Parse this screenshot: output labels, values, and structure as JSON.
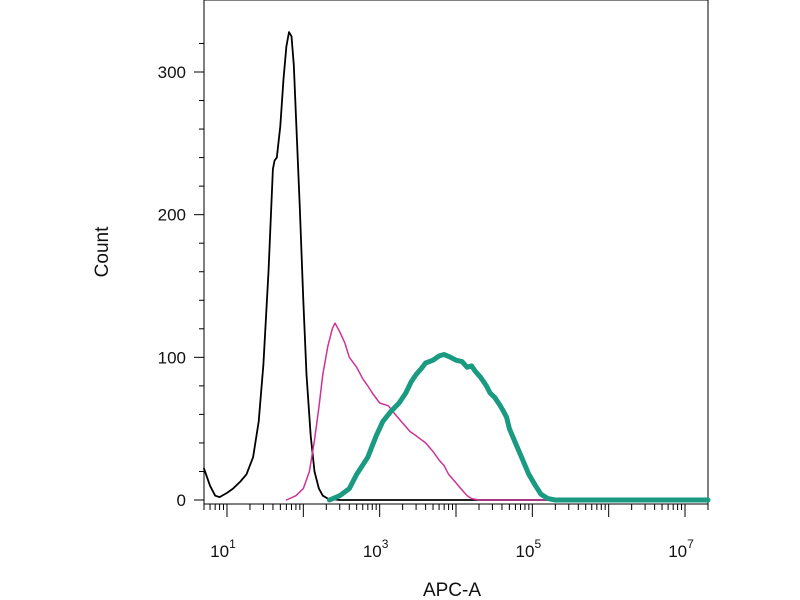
{
  "chart_data": {
    "type": "line",
    "title": "",
    "xlabel": "APC-A",
    "ylabel": "Count",
    "x_scale": "log",
    "xlim": [
      5,
      20000000
    ],
    "ylim": [
      0,
      345
    ],
    "x_ticks": [
      {
        "value": 10,
        "base": "10",
        "exp": "1"
      },
      {
        "value": 1000,
        "base": "10",
        "exp": "3"
      },
      {
        "value": 100000,
        "base": "10",
        "exp": "5"
      },
      {
        "value": 10000000,
        "base": "10",
        "exp": "7"
      }
    ],
    "y_ticks": [
      0,
      100,
      200,
      300
    ],
    "grid": false,
    "legend": "none",
    "series": [
      {
        "color": "#000000",
        "line_width": "thin",
        "points": [
          [
            5,
            22
          ],
          [
            6,
            10
          ],
          [
            7,
            3
          ],
          [
            8,
            2
          ],
          [
            10,
            5
          ],
          [
            12,
            8
          ],
          [
            15,
            13
          ],
          [
            18,
            18
          ],
          [
            22,
            30
          ],
          [
            26,
            55
          ],
          [
            30,
            95
          ],
          [
            35,
            160
          ],
          [
            40,
            232
          ],
          [
            42,
            238
          ],
          [
            45,
            240
          ],
          [
            50,
            262
          ],
          [
            55,
            295
          ],
          [
            60,
            318
          ],
          [
            65,
            328
          ],
          [
            70,
            325
          ],
          [
            75,
            305
          ],
          [
            80,
            270
          ],
          [
            90,
            205
          ],
          [
            100,
            140
          ],
          [
            110,
            88
          ],
          [
            125,
            45
          ],
          [
            140,
            20
          ],
          [
            160,
            8
          ],
          [
            180,
            3
          ],
          [
            210,
            1
          ],
          [
            300,
            0
          ],
          [
            1000,
            0
          ],
          [
            100000,
            0
          ],
          [
            20000000,
            0
          ]
        ]
      },
      {
        "color": "#cc3399",
        "line_width": "thin",
        "points": [
          [
            60,
            0
          ],
          [
            80,
            3
          ],
          [
            100,
            8
          ],
          [
            120,
            20
          ],
          [
            140,
            42
          ],
          [
            160,
            65
          ],
          [
            180,
            88
          ],
          [
            210,
            108
          ],
          [
            240,
            120
          ],
          [
            260,
            124
          ],
          [
            300,
            118
          ],
          [
            350,
            110
          ],
          [
            400,
            100
          ],
          [
            500,
            93
          ],
          [
            600,
            85
          ],
          [
            700,
            80
          ],
          [
            800,
            75
          ],
          [
            1000,
            68
          ],
          [
            1300,
            66
          ],
          [
            1600,
            60
          ],
          [
            2000,
            54
          ],
          [
            2500,
            48
          ],
          [
            3000,
            45
          ],
          [
            4000,
            40
          ],
          [
            5000,
            34
          ],
          [
            6000,
            28
          ],
          [
            7000,
            24
          ],
          [
            8000,
            18
          ],
          [
            10000,
            12
          ],
          [
            12000,
            7
          ],
          [
            14000,
            3
          ],
          [
            16000,
            1
          ],
          [
            20000,
            0
          ],
          [
            20000000,
            0
          ]
        ]
      },
      {
        "color": "#1a9a80",
        "line_width": "thick",
        "points": [
          [
            220,
            0
          ],
          [
            300,
            3
          ],
          [
            400,
            8
          ],
          [
            500,
            18
          ],
          [
            700,
            30
          ],
          [
            900,
            45
          ],
          [
            1100,
            55
          ],
          [
            1400,
            62
          ],
          [
            1800,
            68
          ],
          [
            2200,
            75
          ],
          [
            2600,
            83
          ],
          [
            3000,
            88
          ],
          [
            3500,
            92
          ],
          [
            4000,
            96
          ],
          [
            5000,
            98
          ],
          [
            6000,
            101
          ],
          [
            7000,
            102
          ],
          [
            8500,
            100
          ],
          [
            10000,
            98
          ],
          [
            12000,
            97
          ],
          [
            14000,
            93
          ],
          [
            16000,
            94
          ],
          [
            18000,
            90
          ],
          [
            21000,
            86
          ],
          [
            25000,
            80
          ],
          [
            28000,
            75
          ],
          [
            32000,
            72
          ],
          [
            37000,
            67
          ],
          [
            42000,
            62
          ],
          [
            46000,
            58
          ],
          [
            50000,
            50
          ],
          [
            60000,
            40
          ],
          [
            75000,
            28
          ],
          [
            90000,
            18
          ],
          [
            110000,
            10
          ],
          [
            130000,
            4
          ],
          [
            160000,
            1
          ],
          [
            200000,
            0
          ],
          [
            20000000,
            0
          ]
        ]
      }
    ]
  }
}
